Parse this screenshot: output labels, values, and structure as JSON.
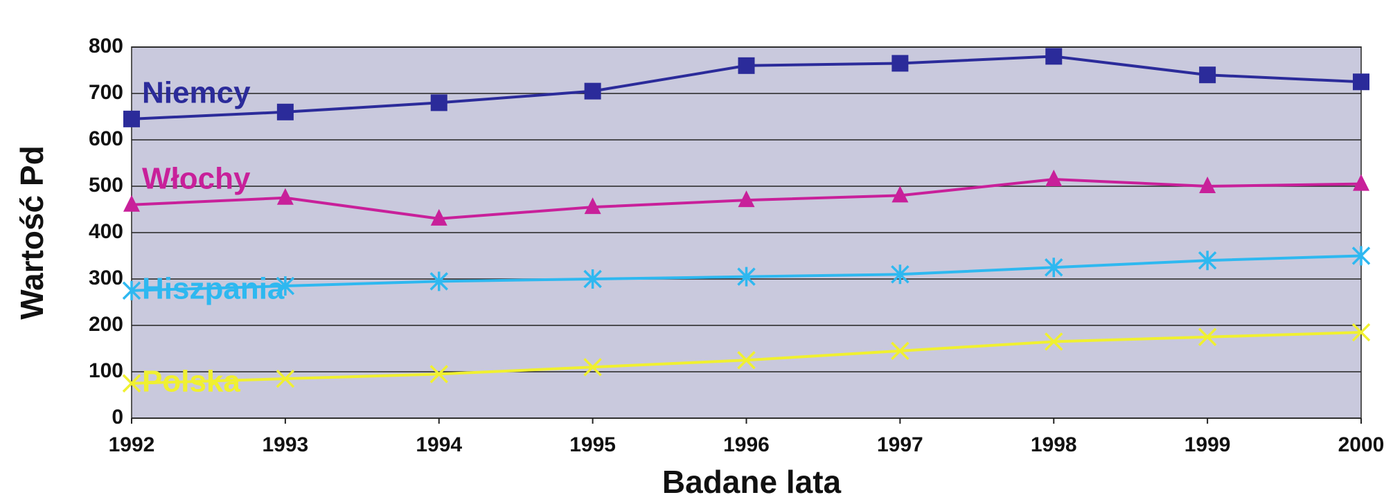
{
  "chart_data": {
    "type": "line",
    "x_label": "Badane lata",
    "y_label": "Wartość Pd",
    "categories": [
      "1992",
      "1993",
      "1994",
      "1995",
      "1996",
      "1997",
      "1998",
      "1999",
      "2000"
    ],
    "series": [
      {
        "name": "Niemcy",
        "color": "#2b2b9a",
        "marker": "square",
        "values": [
          645,
          660,
          680,
          705,
          760,
          765,
          780,
          740,
          725
        ]
      },
      {
        "name": "Włochy",
        "color": "#c8209a",
        "marker": "triangle",
        "values": [
          460,
          475,
          430,
          455,
          470,
          480,
          515,
          500,
          505
        ]
      },
      {
        "name": "Hiszpania",
        "color": "#2eb8f0",
        "marker": "asterisk",
        "values": [
          275,
          285,
          295,
          300,
          305,
          310,
          325,
          340,
          350
        ]
      },
      {
        "name": "Polska",
        "color": "#f0f030",
        "marker": "x",
        "values": [
          75,
          85,
          95,
          110,
          125,
          145,
          165,
          175,
          185
        ]
      }
    ],
    "ylim": [
      0,
      800
    ],
    "yticks": [
      0,
      100,
      200,
      300,
      400,
      500,
      600,
      700,
      800
    ],
    "grid": true
  }
}
